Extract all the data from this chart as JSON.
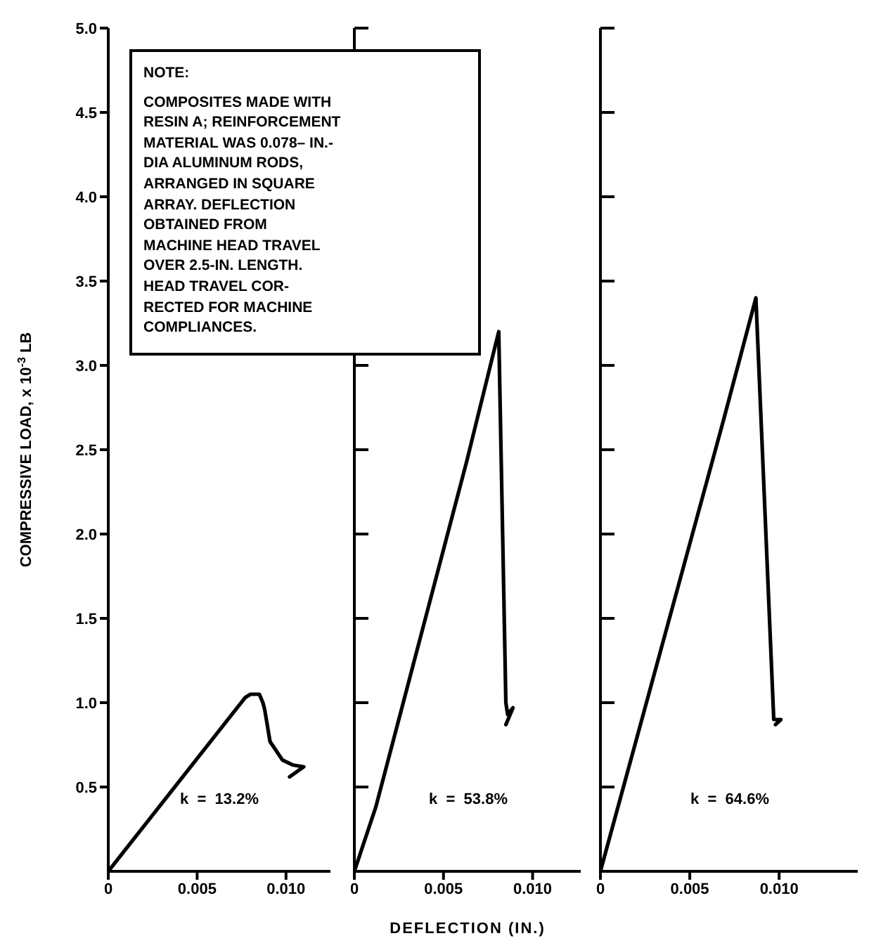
{
  "chart_data": [
    {
      "type": "line",
      "ylabel": "COMPRESSIVE LOAD, x 10$^{-3}$ LB",
      "xlim": [
        0,
        0.0125
      ],
      "xticks": [
        {
          "value": 0,
          "label": "0"
        },
        {
          "value": 0.005,
          "label": "0.005"
        },
        {
          "value": 0.01,
          "label": "0.010"
        }
      ],
      "ylim": [
        0,
        5
      ],
      "yticks": [
        {
          "value": 0.5,
          "label": "0.5"
        },
        {
          "value": 1,
          "label": "1.0"
        },
        {
          "value": 1.5,
          "label": "1.5"
        },
        {
          "value": 2,
          "label": "2.0"
        },
        {
          "value": 2.5,
          "label": "2.5"
        },
        {
          "value": 3,
          "label": "3.0"
        },
        {
          "value": 3.5,
          "label": "3.5"
        },
        {
          "value": 4,
          "label": "4.0"
        },
        {
          "value": 4.5,
          "label": "4.5"
        },
        {
          "value": 5,
          "label": "5.0"
        }
      ],
      "marker": "none",
      "series": [
        {
          "color": "#000000",
          "x": [
            0,
            0.0077,
            0.008,
            0.0085,
            0.0087,
            0.0088,
            0.0091,
            0.0098,
            0.0104,
            0.011,
            0.0102
          ],
          "values": [
            0,
            1.03,
            1.05,
            1.05,
            1.0,
            0.96,
            0.77,
            0.66,
            0.63,
            0.62,
            0.56
          ]
        }
      ],
      "annotations": [
        "NOTE:",
        "COMPOSITES MADE WITH\nRESIN A; REINFORCEMENT\nMATERIAL WAS 0.078– IN.-\nDIA ALUMINUM RODS,\nARRANGED IN SQUARE\nARRAY.  DEFLECTION\nOBTAINED FROM\nMACHINE HEAD TRAVEL\nOVER 2.5-IN. LENGTH.\nHEAD TRAVEL COR-\nRECTED FOR MACHINE\nCOMPLIANCES.",
        "k  =  13.2%"
      ]
    },
    {
      "type": "line",
      "xlabel": "DEFLECTION (IN.)",
      "xlim": [
        0,
        0.0127
      ],
      "xticks": [
        {
          "value": 0,
          "label": "0"
        },
        {
          "value": 0.005,
          "label": "0.005"
        },
        {
          "value": 0.01,
          "label": "0.010"
        }
      ],
      "ylim": [
        0,
        5
      ],
      "yticks": [
        0.5,
        1,
        1.5,
        2,
        2.5,
        3,
        3.5,
        4,
        4.5,
        5
      ],
      "tick_labels": "x",
      "marker": "none",
      "series": [
        {
          "color": "#000000",
          "x": [
            0,
            0.0012,
            0.0063,
            0.0081,
            0.0085,
            0.0086,
            0.0089,
            0.0085
          ],
          "values": [
            0,
            0.38,
            2.43,
            3.2,
            1.0,
            0.93,
            0.97,
            0.87
          ]
        }
      ],
      "annotations": [
        "k  =  53.8%"
      ]
    },
    {
      "type": "line",
      "xlim": [
        0,
        0.0144
      ],
      "xticks": [
        {
          "value": 0,
          "label": "0"
        },
        {
          "value": 0.005,
          "label": "0.005"
        },
        {
          "value": 0.01,
          "label": "0.010"
        }
      ],
      "ylim": [
        0,
        5
      ],
      "yticks": [
        0.5,
        1,
        1.5,
        2,
        2.5,
        3,
        3.5,
        4,
        4.5,
        5
      ],
      "tick_labels": "x",
      "marker": "none",
      "series": [
        {
          "color": "#000000",
          "x": [
            0,
            0.0069,
            0.0087,
            0.0097,
            0.0101,
            0.0098
          ],
          "values": [
            0,
            2.68,
            3.4,
            0.9,
            0.9,
            0.87
          ]
        }
      ],
      "annotations": [
        "k  =  64.6%"
      ]
    }
  ]
}
